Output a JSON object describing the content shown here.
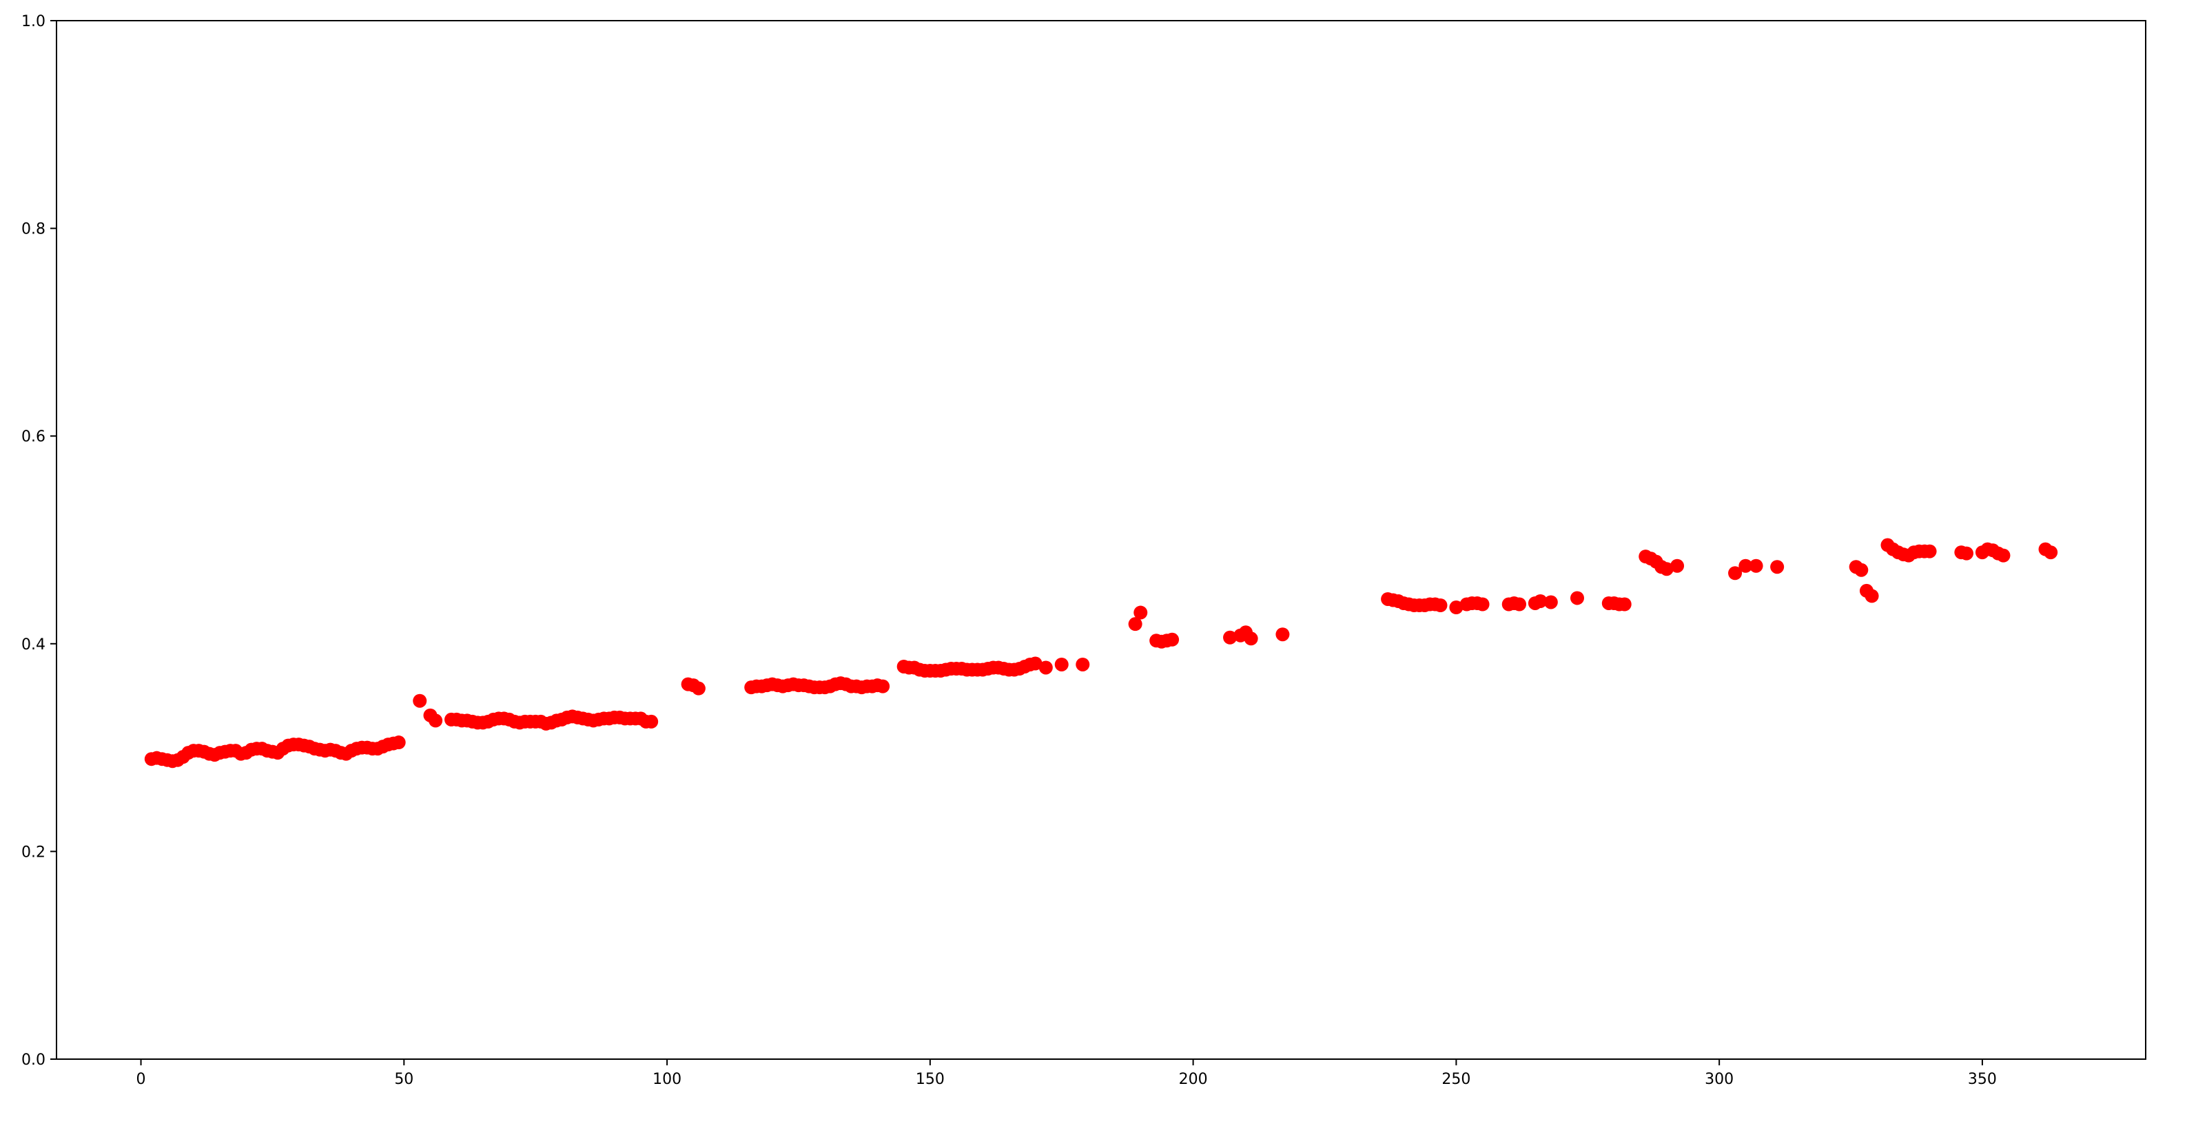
{
  "chart_data": {
    "type": "scatter",
    "title": "",
    "xlabel": "",
    "ylabel": "",
    "xlim": [
      -16.05,
      381.05
    ],
    "ylim": [
      0,
      1
    ],
    "xticks": [
      0,
      50,
      100,
      150,
      200,
      250,
      300,
      350
    ],
    "xtick_labels": [
      "0",
      "50",
      "100",
      "150",
      "200",
      "250",
      "300",
      "350"
    ],
    "yticks": [
      0,
      0.2,
      0.4,
      0.6,
      0.8,
      1.0
    ],
    "ytick_labels": [
      "0.0",
      "0.2",
      "0.4",
      "0.6",
      "0.8",
      "1.0"
    ],
    "grid": false,
    "marker_color": "#ff0000",
    "points": [
      [
        2,
        0.289
      ],
      [
        3,
        0.29
      ],
      [
        4,
        0.289
      ],
      [
        5,
        0.288
      ],
      [
        6,
        0.287
      ],
      [
        7,
        0.288
      ],
      [
        8,
        0.291
      ],
      [
        9,
        0.295
      ],
      [
        10,
        0.297
      ],
      [
        11,
        0.297
      ],
      [
        12,
        0.296
      ],
      [
        13,
        0.294
      ],
      [
        14,
        0.293
      ],
      [
        15,
        0.295
      ],
      [
        16,
        0.296
      ],
      [
        17,
        0.297
      ],
      [
        18,
        0.297
      ],
      [
        19,
        0.294
      ],
      [
        20,
        0.295
      ],
      [
        21,
        0.298
      ],
      [
        22,
        0.299
      ],
      [
        23,
        0.299
      ],
      [
        24,
        0.297
      ],
      [
        25,
        0.296
      ],
      [
        26,
        0.295
      ],
      [
        27,
        0.299
      ],
      [
        28,
        0.302
      ],
      [
        29,
        0.303
      ],
      [
        30,
        0.303
      ],
      [
        31,
        0.302
      ],
      [
        32,
        0.301
      ],
      [
        33,
        0.299
      ],
      [
        34,
        0.298
      ],
      [
        35,
        0.297
      ],
      [
        36,
        0.298
      ],
      [
        37,
        0.297
      ],
      [
        38,
        0.295
      ],
      [
        39,
        0.294
      ],
      [
        40,
        0.297
      ],
      [
        41,
        0.299
      ],
      [
        42,
        0.3
      ],
      [
        43,
        0.3
      ],
      [
        44,
        0.299
      ],
      [
        45,
        0.299
      ],
      [
        46,
        0.301
      ],
      [
        47,
        0.303
      ],
      [
        48,
        0.304
      ],
      [
        49,
        0.305
      ],
      [
        53,
        0.345
      ],
      [
        55,
        0.331
      ],
      [
        56,
        0.326
      ],
      [
        59,
        0.327
      ],
      [
        60,
        0.327
      ],
      [
        61,
        0.326
      ],
      [
        62,
        0.326
      ],
      [
        63,
        0.325
      ],
      [
        64,
        0.324
      ],
      [
        65,
        0.324
      ],
      [
        66,
        0.325
      ],
      [
        67,
        0.327
      ],
      [
        68,
        0.328
      ],
      [
        69,
        0.328
      ],
      [
        70,
        0.327
      ],
      [
        71,
        0.325
      ],
      [
        72,
        0.324
      ],
      [
        73,
        0.325
      ],
      [
        74,
        0.325
      ],
      [
        75,
        0.325
      ],
      [
        76,
        0.325
      ],
      [
        77,
        0.323
      ],
      [
        78,
        0.324
      ],
      [
        79,
        0.326
      ],
      [
        80,
        0.327
      ],
      [
        81,
        0.329
      ],
      [
        82,
        0.33
      ],
      [
        83,
        0.329
      ],
      [
        84,
        0.328
      ],
      [
        85,
        0.327
      ],
      [
        86,
        0.326
      ],
      [
        87,
        0.327
      ],
      [
        88,
        0.328
      ],
      [
        89,
        0.328
      ],
      [
        90,
        0.329
      ],
      [
        91,
        0.329
      ],
      [
        92,
        0.328
      ],
      [
        93,
        0.328
      ],
      [
        94,
        0.328
      ],
      [
        95,
        0.328
      ],
      [
        96,
        0.325
      ],
      [
        97,
        0.325
      ],
      [
        104,
        0.361
      ],
      [
        105,
        0.36
      ],
      [
        106,
        0.357
      ],
      [
        116,
        0.358
      ],
      [
        117,
        0.359
      ],
      [
        118,
        0.359
      ],
      [
        119,
        0.36
      ],
      [
        120,
        0.361
      ],
      [
        121,
        0.36
      ],
      [
        122,
        0.359
      ],
      [
        123,
        0.36
      ],
      [
        124,
        0.361
      ],
      [
        125,
        0.36
      ],
      [
        126,
        0.36
      ],
      [
        127,
        0.359
      ],
      [
        128,
        0.358
      ],
      [
        129,
        0.358
      ],
      [
        130,
        0.358
      ],
      [
        131,
        0.359
      ],
      [
        132,
        0.361
      ],
      [
        133,
        0.362
      ],
      [
        134,
        0.361
      ],
      [
        135,
        0.359
      ],
      [
        136,
        0.359
      ],
      [
        137,
        0.358
      ],
      [
        138,
        0.359
      ],
      [
        139,
        0.359
      ],
      [
        140,
        0.36
      ],
      [
        141,
        0.359
      ],
      [
        145,
        0.378
      ],
      [
        146,
        0.377
      ],
      [
        147,
        0.377
      ],
      [
        148,
        0.375
      ],
      [
        149,
        0.374
      ],
      [
        150,
        0.374
      ],
      [
        151,
        0.374
      ],
      [
        152,
        0.374
      ],
      [
        153,
        0.375
      ],
      [
        154,
        0.376
      ],
      [
        155,
        0.376
      ],
      [
        156,
        0.376
      ],
      [
        157,
        0.375
      ],
      [
        158,
        0.375
      ],
      [
        159,
        0.375
      ],
      [
        160,
        0.375
      ],
      [
        161,
        0.376
      ],
      [
        162,
        0.377
      ],
      [
        163,
        0.377
      ],
      [
        164,
        0.376
      ],
      [
        165,
        0.375
      ],
      [
        166,
        0.375
      ],
      [
        167,
        0.376
      ],
      [
        168,
        0.378
      ],
      [
        169,
        0.38
      ],
      [
        170,
        0.381
      ],
      [
        172,
        0.377
      ],
      [
        175,
        0.38
      ],
      [
        179,
        0.38
      ],
      [
        189,
        0.419
      ],
      [
        190,
        0.43
      ],
      [
        193,
        0.403
      ],
      [
        194,
        0.402
      ],
      [
        195,
        0.403
      ],
      [
        196,
        0.404
      ],
      [
        207,
        0.406
      ],
      [
        209,
        0.408
      ],
      [
        210,
        0.411
      ],
      [
        211,
        0.405
      ],
      [
        217,
        0.409
      ],
      [
        237,
        0.443
      ],
      [
        238,
        0.442
      ],
      [
        239,
        0.441
      ],
      [
        240,
        0.439
      ],
      [
        241,
        0.438
      ],
      [
        242,
        0.437
      ],
      [
        243,
        0.437
      ],
      [
        244,
        0.437
      ],
      [
        245,
        0.438
      ],
      [
        246,
        0.438
      ],
      [
        247,
        0.437
      ],
      [
        250,
        0.435
      ],
      [
        252,
        0.438
      ],
      [
        253,
        0.439
      ],
      [
        254,
        0.439
      ],
      [
        255,
        0.438
      ],
      [
        260,
        0.438
      ],
      [
        261,
        0.439
      ],
      [
        262,
        0.438
      ],
      [
        265,
        0.439
      ],
      [
        266,
        0.441
      ],
      [
        268,
        0.44
      ],
      [
        273,
        0.444
      ],
      [
        279,
        0.439
      ],
      [
        280,
        0.439
      ],
      [
        281,
        0.438
      ],
      [
        282,
        0.438
      ],
      [
        286,
        0.484
      ],
      [
        287,
        0.482
      ],
      [
        288,
        0.479
      ],
      [
        289,
        0.474
      ],
      [
        290,
        0.472
      ],
      [
        292,
        0.475
      ],
      [
        303,
        0.468
      ],
      [
        305,
        0.475
      ],
      [
        307,
        0.475
      ],
      [
        311,
        0.474
      ],
      [
        326,
        0.474
      ],
      [
        327,
        0.471
      ],
      [
        328,
        0.451
      ],
      [
        329,
        0.446
      ],
      [
        332,
        0.495
      ],
      [
        333,
        0.491
      ],
      [
        334,
        0.488
      ],
      [
        335,
        0.486
      ],
      [
        336,
        0.485
      ],
      [
        337,
        0.488
      ],
      [
        338,
        0.489
      ],
      [
        339,
        0.489
      ],
      [
        340,
        0.489
      ],
      [
        346,
        0.488
      ],
      [
        347,
        0.487
      ],
      [
        350,
        0.488
      ],
      [
        351,
        0.491
      ],
      [
        352,
        0.49
      ],
      [
        353,
        0.487
      ],
      [
        354,
        0.485
      ],
      [
        362,
        0.491
      ],
      [
        363,
        0.488
      ]
    ]
  }
}
